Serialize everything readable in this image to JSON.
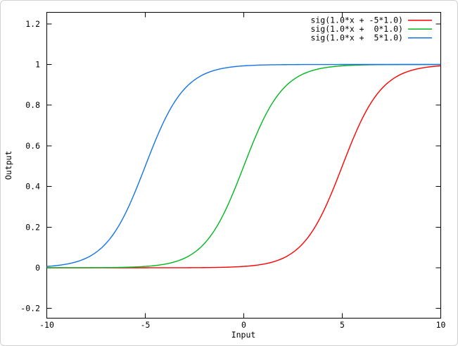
{
  "window": {
    "background": "#ffffff",
    "border_color": "#d2d2d2"
  },
  "chart_data": {
    "type": "line",
    "title": "",
    "xlabel": "Input",
    "ylabel": "Output",
    "xlim": [
      -10,
      10
    ],
    "ylim": [
      -0.25,
      1.26
    ],
    "grid": false,
    "legend_position": "top-right-inside",
    "frame_color": "#000000",
    "text_color": "#000000",
    "x_tick_labels": [
      "-10",
      "-5",
      "0",
      "5",
      "10"
    ],
    "x_tick_values": [
      -10,
      -5,
      0,
      5,
      10
    ],
    "y_tick_labels": [
      "1.2",
      "1",
      "0.8",
      "0.6",
      "0.4",
      "0.2",
      "0",
      "-0.2"
    ],
    "y_tick_values": [
      1.2,
      1.0,
      0.8,
      0.6,
      0.4,
      0.2,
      0.0,
      -0.2
    ],
    "x_sample_points": [
      -10,
      -9,
      -8,
      -7,
      -6,
      -5,
      -4,
      -3,
      -2,
      -1,
      0,
      1,
      2,
      3,
      4,
      5,
      6,
      7,
      8,
      9,
      10
    ],
    "series": [
      {
        "name": "sig(1.0*x + -5*1.0)",
        "color": "#ff0000",
        "function": "sigmoid",
        "slope": 1.0,
        "bias": -5.0,
        "values": [
          3e-07,
          8e-07,
          2.2e-06,
          6.1e-06,
          1.67e-05,
          4.54e-05,
          0.000123,
          0.000335,
          0.000911,
          0.002473,
          0.006693,
          0.017986,
          0.047426,
          0.119203,
          0.268941,
          0.5,
          0.731059,
          0.880797,
          0.952574,
          0.982014,
          0.993307
        ]
      },
      {
        "name": "sig(1.0*x +  0*1.0)",
        "color": "#00b81e",
        "function": "sigmoid",
        "slope": 1.0,
        "bias": 0.0,
        "values": [
          4.54e-05,
          0.000123,
          0.000335,
          0.000911,
          0.002473,
          0.006693,
          0.017986,
          0.047426,
          0.119203,
          0.268941,
          0.5,
          0.731059,
          0.880797,
          0.952574,
          0.982014,
          0.993307,
          0.997527,
          0.999089,
          0.999665,
          0.999877,
          0.999955
        ]
      },
      {
        "name": "sig(1.0*x +  5*1.0)",
        "color": "#1473e6",
        "function": "sigmoid",
        "slope": 1.0,
        "bias": 5.0,
        "values": [
          0.006693,
          0.017986,
          0.047426,
          0.119203,
          0.268941,
          0.5,
          0.731059,
          0.880797,
          0.952574,
          0.982014,
          0.993307,
          0.997527,
          0.999089,
          0.999665,
          0.999877,
          0.999955,
          0.999983,
          0.999994,
          0.999998,
          0.999999,
          0.9999997
        ]
      }
    ]
  }
}
